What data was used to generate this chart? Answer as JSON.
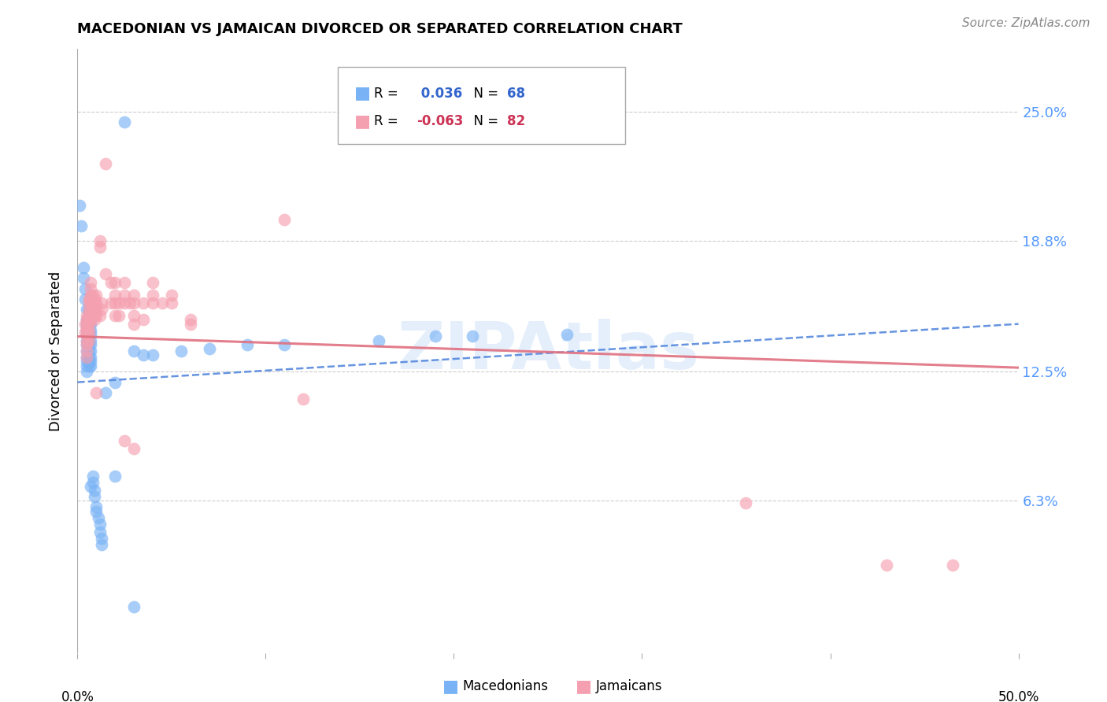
{
  "title": "MACEDONIAN VS JAMAICAN DIVORCED OR SEPARATED CORRELATION CHART",
  "source": "Source: ZipAtlas.com",
  "ylabel": "Divorced or Separated",
  "ytick_labels": [
    "25.0%",
    "18.8%",
    "12.5%",
    "6.3%"
  ],
  "ytick_values": [
    0.25,
    0.188,
    0.125,
    0.063
  ],
  "xlim": [
    0.0,
    0.5
  ],
  "ylim": [
    -0.01,
    0.28
  ],
  "legend_blue_r": " 0.036",
  "legend_blue_n": "68",
  "legend_pink_r": "-0.063",
  "legend_pink_n": "82",
  "watermark": "ZIPAtlas",
  "blue_color": "#7ab3f5",
  "pink_color": "#f5a0b0",
  "blue_line_color": "#5588dd",
  "pink_line_color": "#e07080",
  "blue_scatter": [
    [
      0.001,
      0.205
    ],
    [
      0.002,
      0.195
    ],
    [
      0.003,
      0.175
    ],
    [
      0.003,
      0.17
    ],
    [
      0.004,
      0.165
    ],
    [
      0.004,
      0.16
    ],
    [
      0.005,
      0.155
    ],
    [
      0.005,
      0.15
    ],
    [
      0.005,
      0.148
    ],
    [
      0.005,
      0.145
    ],
    [
      0.005,
      0.143
    ],
    [
      0.005,
      0.14
    ],
    [
      0.005,
      0.138
    ],
    [
      0.005,
      0.135
    ],
    [
      0.005,
      0.132
    ],
    [
      0.005,
      0.13
    ],
    [
      0.005,
      0.128
    ],
    [
      0.005,
      0.125
    ],
    [
      0.006,
      0.155
    ],
    [
      0.006,
      0.152
    ],
    [
      0.006,
      0.15
    ],
    [
      0.006,
      0.148
    ],
    [
      0.006,
      0.145
    ],
    [
      0.006,
      0.142
    ],
    [
      0.006,
      0.14
    ],
    [
      0.006,
      0.138
    ],
    [
      0.006,
      0.135
    ],
    [
      0.006,
      0.132
    ],
    [
      0.006,
      0.13
    ],
    [
      0.006,
      0.128
    ],
    [
      0.007,
      0.15
    ],
    [
      0.007,
      0.148
    ],
    [
      0.007,
      0.145
    ],
    [
      0.007,
      0.143
    ],
    [
      0.007,
      0.14
    ],
    [
      0.007,
      0.138
    ],
    [
      0.007,
      0.135
    ],
    [
      0.007,
      0.132
    ],
    [
      0.007,
      0.13
    ],
    [
      0.007,
      0.128
    ],
    [
      0.007,
      0.07
    ],
    [
      0.008,
      0.075
    ],
    [
      0.008,
      0.072
    ],
    [
      0.009,
      0.068
    ],
    [
      0.009,
      0.065
    ],
    [
      0.01,
      0.06
    ],
    [
      0.01,
      0.058
    ],
    [
      0.011,
      0.055
    ],
    [
      0.012,
      0.052
    ],
    [
      0.012,
      0.048
    ],
    [
      0.013,
      0.045
    ],
    [
      0.013,
      0.042
    ],
    [
      0.015,
      0.115
    ],
    [
      0.02,
      0.12
    ],
    [
      0.02,
      0.075
    ],
    [
      0.025,
      0.245
    ],
    [
      0.03,
      0.135
    ],
    [
      0.035,
      0.133
    ],
    [
      0.04,
      0.133
    ],
    [
      0.055,
      0.135
    ],
    [
      0.07,
      0.136
    ],
    [
      0.09,
      0.138
    ],
    [
      0.11,
      0.138
    ],
    [
      0.16,
      0.14
    ],
    [
      0.19,
      0.142
    ],
    [
      0.21,
      0.142
    ],
    [
      0.26,
      0.143
    ],
    [
      0.03,
      0.012
    ]
  ],
  "pink_scatter": [
    [
      0.004,
      0.148
    ],
    [
      0.004,
      0.144
    ],
    [
      0.005,
      0.152
    ],
    [
      0.005,
      0.15
    ],
    [
      0.005,
      0.148
    ],
    [
      0.005,
      0.145
    ],
    [
      0.005,
      0.143
    ],
    [
      0.005,
      0.14
    ],
    [
      0.005,
      0.138
    ],
    [
      0.005,
      0.135
    ],
    [
      0.005,
      0.132
    ],
    [
      0.006,
      0.16
    ],
    [
      0.006,
      0.158
    ],
    [
      0.006,
      0.155
    ],
    [
      0.006,
      0.152
    ],
    [
      0.006,
      0.15
    ],
    [
      0.006,
      0.148
    ],
    [
      0.006,
      0.145
    ],
    [
      0.006,
      0.143
    ],
    [
      0.006,
      0.14
    ],
    [
      0.007,
      0.168
    ],
    [
      0.007,
      0.165
    ],
    [
      0.007,
      0.162
    ],
    [
      0.007,
      0.16
    ],
    [
      0.007,
      0.158
    ],
    [
      0.007,
      0.155
    ],
    [
      0.007,
      0.152
    ],
    [
      0.007,
      0.15
    ],
    [
      0.008,
      0.162
    ],
    [
      0.008,
      0.158
    ],
    [
      0.008,
      0.155
    ],
    [
      0.008,
      0.152
    ],
    [
      0.009,
      0.16
    ],
    [
      0.009,
      0.158
    ],
    [
      0.009,
      0.155
    ],
    [
      0.009,
      0.152
    ],
    [
      0.009,
      0.15
    ],
    [
      0.01,
      0.162
    ],
    [
      0.01,
      0.158
    ],
    [
      0.01,
      0.155
    ],
    [
      0.01,
      0.152
    ],
    [
      0.01,
      0.115
    ],
    [
      0.012,
      0.188
    ],
    [
      0.012,
      0.185
    ],
    [
      0.012,
      0.152
    ],
    [
      0.013,
      0.158
    ],
    [
      0.013,
      0.155
    ],
    [
      0.015,
      0.225
    ],
    [
      0.015,
      0.172
    ],
    [
      0.018,
      0.168
    ],
    [
      0.018,
      0.158
    ],
    [
      0.02,
      0.168
    ],
    [
      0.02,
      0.162
    ],
    [
      0.02,
      0.158
    ],
    [
      0.02,
      0.152
    ],
    [
      0.022,
      0.158
    ],
    [
      0.022,
      0.152
    ],
    [
      0.025,
      0.168
    ],
    [
      0.025,
      0.162
    ],
    [
      0.025,
      0.158
    ],
    [
      0.025,
      0.092
    ],
    [
      0.028,
      0.158
    ],
    [
      0.03,
      0.162
    ],
    [
      0.03,
      0.158
    ],
    [
      0.03,
      0.152
    ],
    [
      0.03,
      0.148
    ],
    [
      0.03,
      0.088
    ],
    [
      0.035,
      0.158
    ],
    [
      0.035,
      0.15
    ],
    [
      0.04,
      0.168
    ],
    [
      0.04,
      0.162
    ],
    [
      0.04,
      0.158
    ],
    [
      0.045,
      0.158
    ],
    [
      0.05,
      0.162
    ],
    [
      0.05,
      0.158
    ],
    [
      0.06,
      0.15
    ],
    [
      0.06,
      0.148
    ],
    [
      0.11,
      0.198
    ],
    [
      0.12,
      0.112
    ],
    [
      0.355,
      0.062
    ],
    [
      0.43,
      0.032
    ],
    [
      0.465,
      0.032
    ]
  ],
  "blue_line_x": [
    0.0,
    0.5
  ],
  "blue_line_y_start": 0.12,
  "blue_line_y_end": 0.148,
  "pink_line_x": [
    0.0,
    0.5
  ],
  "pink_line_y_start": 0.142,
  "pink_line_y_end": 0.127
}
